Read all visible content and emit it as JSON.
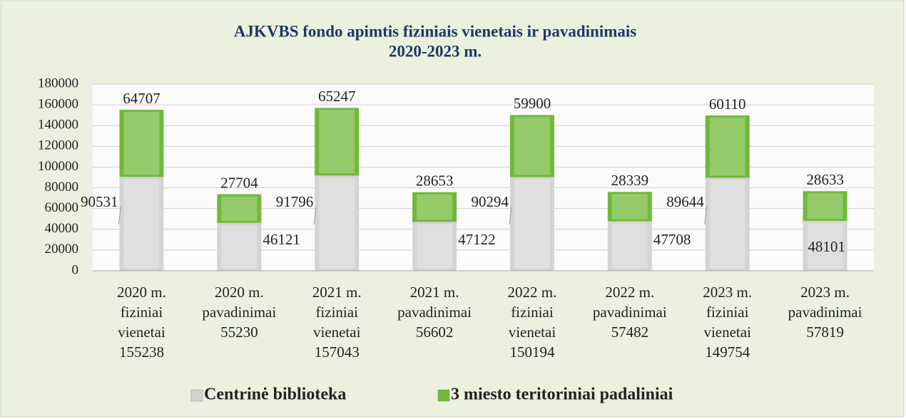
{
  "chart_data": {
    "type": "stacked_bar",
    "title": [
      "AJKVBS fondo apimtis fiziniais vienetais ir pavadinimais",
      "2020-2023 m."
    ],
    "categories": [
      [
        "2020 m.",
        "fiziniai",
        "vienetai",
        "155238"
      ],
      [
        "2020 m.",
        "pavadinimai",
        "55230"
      ],
      [
        "2021 m.",
        "fiziniai",
        "vienetai",
        "157043"
      ],
      [
        "2021 m.",
        "pavadinimai",
        "56602"
      ],
      [
        "2022 m.",
        "fiziniai",
        "vienetai",
        "150194"
      ],
      [
        "2022 m.",
        "pavadinimai",
        "57482"
      ],
      [
        "2023 m.",
        "fiziniai",
        "vienetai",
        "149754"
      ],
      [
        "2023 m.",
        "pavadinimai",
        "57819"
      ]
    ],
    "series": [
      {
        "name": "Centrinė biblioteka",
        "color": "#d4d4d4",
        "values": [
          90531,
          46121,
          91796,
          47122,
          90294,
          47708,
          89644,
          48101
        ]
      },
      {
        "name": "3 miesto teritoriniai padaliniai",
        "color": "#72b83a",
        "values": [
          64707,
          27704,
          65247,
          28653,
          59900,
          28339,
          60110,
          28633
        ]
      }
    ],
    "ylim": [
      0,
      180000
    ],
    "yticks": [
      0,
      20000,
      40000,
      60000,
      80000,
      100000,
      120000,
      140000,
      160000,
      180000
    ],
    "grid": true,
    "legend": "bottom"
  }
}
